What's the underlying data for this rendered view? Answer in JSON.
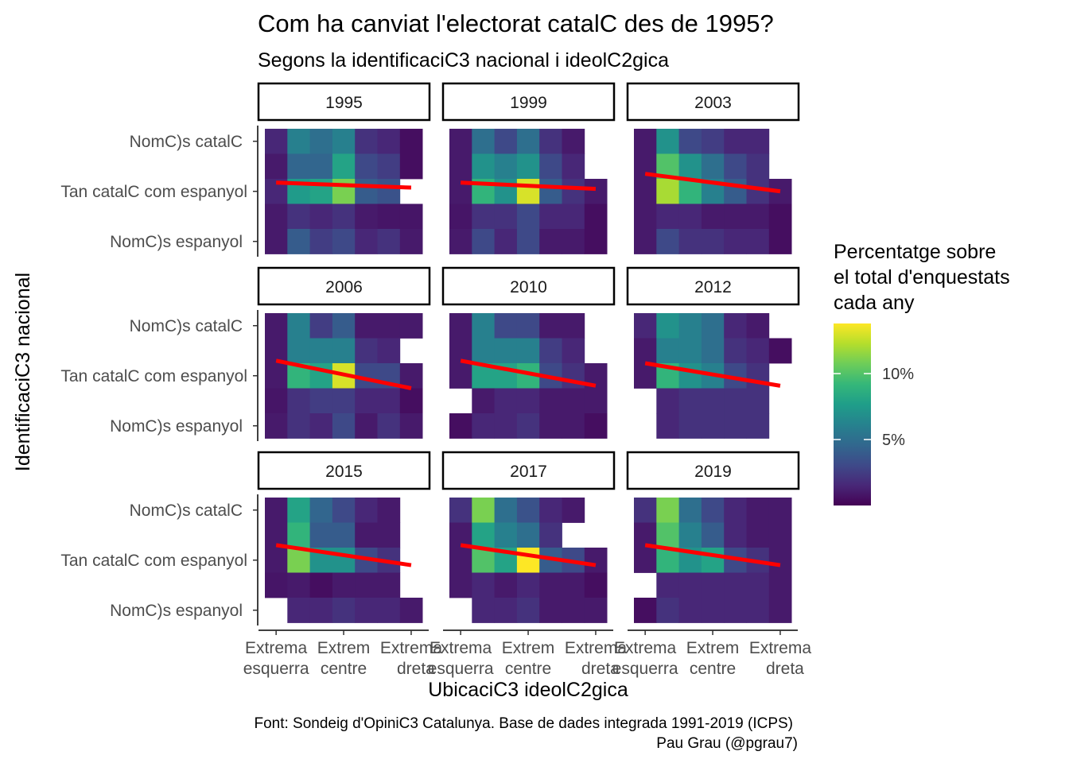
{
  "chart_data": {
    "type": "heatmap",
    "title": "Com ha canviat l'electorat catalC  des de 1995?",
    "subtitle": "Segons la identificaciC3 nacional i ideolC2gica",
    "xlabel": "UbicaciC3 ideolC2gica",
    "ylabel": "IdentificaciC3 nacional",
    "x_tick_labels": [
      {
        "line1": "Extrema",
        "line2": "esquerra"
      },
      {
        "line1": "Extrem",
        "line2": "centre"
      },
      {
        "line1": "Extrema",
        "line2": "dreta"
      }
    ],
    "y_tick_labels": [
      "NomC)s catalC",
      "Tan catalC  com espanyol",
      "NomC)s espanyol"
    ],
    "legend": {
      "title_lines": [
        "Percentatge sobre",
        "el total d'enquestats",
        "cada any"
      ],
      "ticks": [
        {
          "value": 5,
          "label": "5%"
        },
        {
          "value": 10,
          "label": "10%"
        }
      ],
      "range": [
        0,
        13.8
      ],
      "colors": [
        "#440154",
        "#482878",
        "#3E4A89",
        "#31688E",
        "#26828E",
        "#1F9E89",
        "#35B779",
        "#6DCD59",
        "#B4DE2C",
        "#FDE725"
      ],
      "position": "right"
    },
    "caption": [
      "Font: Sondeig d'OpiniC3 Catalunya. Base de dades integrada 1991-2019 (ICPS)",
      "Pau Grau (@pgrau7)"
    ],
    "x_categories": [
      1,
      2,
      3,
      4,
      5,
      6,
      7
    ],
    "y_categories": [
      "1",
      "2",
      "3",
      "4",
      "5"
    ],
    "line_color": "#FF0000",
    "panels": [
      {
        "year": "1995",
        "values": [
          [
            1.5,
            6,
            5,
            6,
            2,
            1.5,
            0.5
          ],
          [
            1,
            4.5,
            4.5,
            8,
            3,
            2.5,
            0.5
          ],
          [
            1.5,
            7.5,
            8,
            11,
            4,
            3.5,
            null
          ],
          [
            1,
            2,
            1.5,
            2,
            1,
            0.8,
            0.8
          ],
          [
            1,
            4,
            2.5,
            3,
            1.5,
            2,
            1
          ]
        ],
        "trend": {
          "x": [
            1,
            7
          ],
          "y": [
            2.65,
            2.85
          ]
        }
      },
      {
        "year": "1999",
        "values": [
          [
            1,
            5,
            3,
            5,
            2,
            1,
            null
          ],
          [
            1,
            7,
            6,
            7,
            3,
            1.5,
            null
          ],
          [
            1,
            9,
            7,
            13,
            4,
            2,
            1
          ],
          [
            0.8,
            2,
            2,
            3,
            1.5,
            1.5,
            0.5
          ],
          [
            1,
            3,
            1.5,
            3,
            1,
            1,
            0.5
          ]
        ],
        "trend": {
          "x": [
            1,
            7
          ],
          "y": [
            2.65,
            2.9
          ]
        }
      },
      {
        "year": "2003",
        "values": [
          [
            1,
            7,
            3,
            2.5,
            1.5,
            1.5,
            null
          ],
          [
            1,
            10,
            7,
            5,
            3,
            2,
            null
          ],
          [
            1,
            12,
            9,
            6,
            4,
            2,
            1
          ],
          [
            1,
            1.5,
            1.5,
            1,
            1,
            1,
            0.5
          ],
          [
            1,
            3,
            2,
            2,
            1.5,
            1.5,
            0.5
          ]
        ],
        "trend": {
          "x": [
            1,
            7
          ],
          "y": [
            2.3,
            3.0
          ]
        }
      },
      {
        "year": "2006",
        "values": [
          [
            1,
            6,
            2.5,
            4,
            1,
            1,
            1
          ],
          [
            1,
            6,
            6,
            6,
            2,
            1.5,
            null
          ],
          [
            1,
            9,
            8,
            13,
            3,
            3,
            1
          ],
          [
            0.8,
            2,
            2.5,
            2.5,
            1.5,
            1.5,
            0.5
          ],
          [
            1,
            2,
            1.5,
            3,
            1,
            2,
            1
          ]
        ],
        "trend": {
          "x": [
            1,
            7
          ],
          "y": [
            2.4,
            3.5
          ]
        }
      },
      {
        "year": "2010",
        "values": [
          [
            1,
            6,
            3,
            3,
            1,
            1,
            null
          ],
          [
            1,
            6,
            6,
            6,
            2.5,
            1.5,
            null
          ],
          [
            1,
            8,
            8,
            9,
            3,
            2,
            1
          ],
          [
            null,
            1,
            1.5,
            1.5,
            1,
            1,
            1
          ],
          [
            0.5,
            1.5,
            1.5,
            2,
            1,
            1,
            0.5
          ]
        ],
        "trend": {
          "x": [
            1,
            7
          ],
          "y": [
            2.4,
            3.4
          ]
        }
      },
      {
        "year": "2012",
        "values": [
          [
            1.5,
            7,
            6,
            5,
            1.5,
            1,
            null
          ],
          [
            1,
            6,
            6,
            5,
            2,
            1.5,
            0.5
          ],
          [
            1,
            9,
            7,
            6,
            3,
            2,
            null
          ],
          [
            null,
            1.5,
            2,
            2,
            2,
            2,
            null
          ],
          [
            null,
            1.5,
            2,
            2,
            2,
            2,
            null
          ]
        ],
        "trend": {
          "x": [
            1,
            7
          ],
          "y": [
            2.5,
            3.4
          ]
        }
      },
      {
        "year": "2015",
        "values": [
          [
            1,
            8,
            4.5,
            3,
            1.5,
            1,
            null
          ],
          [
            1,
            9,
            4,
            4,
            1,
            1,
            null
          ],
          [
            1,
            11,
            7,
            7,
            3,
            2,
            null
          ],
          [
            0.8,
            1,
            0.5,
            1,
            1,
            1,
            null
          ],
          [
            null,
            1.5,
            1.5,
            2,
            1.5,
            1.5,
            1
          ]
        ],
        "trend": {
          "x": [
            1,
            7
          ],
          "y": [
            2.4,
            3.2
          ]
        }
      },
      {
        "year": "2017",
        "values": [
          [
            2,
            11,
            5,
            3.5,
            1.5,
            1,
            null
          ],
          [
            1,
            8,
            6,
            5,
            2,
            null,
            null
          ],
          [
            1,
            10,
            8,
            14,
            4,
            3,
            1
          ],
          [
            1,
            1.5,
            1,
            1.5,
            1,
            1,
            0.5
          ],
          [
            null,
            1.5,
            1.5,
            2,
            1,
            1,
            1
          ]
        ],
        "trend": {
          "x": [
            1,
            7
          ],
          "y": [
            2.4,
            3.2
          ]
        }
      },
      {
        "year": "2019",
        "values": [
          [
            2,
            11,
            5,
            3,
            1.5,
            1,
            1
          ],
          [
            1,
            10,
            6,
            4,
            1.5,
            1,
            1
          ],
          [
            1,
            9,
            7,
            8,
            3,
            2,
            1
          ],
          [
            null,
            1.5,
            1.5,
            1.5,
            1.5,
            1.5,
            1
          ],
          [
            0.5,
            2,
            1.5,
            1.5,
            1.5,
            1.5,
            1
          ]
        ],
        "trend": {
          "x": [
            1,
            7
          ],
          "y": [
            2.4,
            3.2
          ]
        }
      }
    ]
  }
}
